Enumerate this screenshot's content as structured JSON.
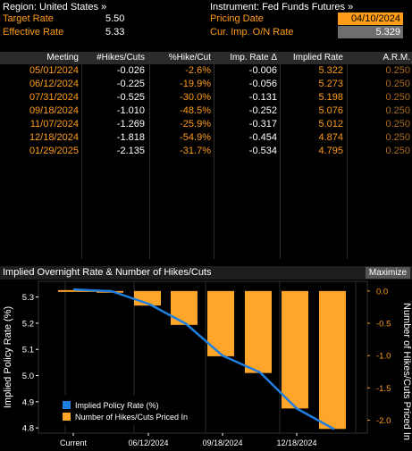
{
  "header": {
    "region_label": "Region: United States »",
    "instrument_label": "Instrument: Fed Funds Futures »",
    "target_rate_label": "Target Rate",
    "target_rate_value": "5.50",
    "effective_rate_label": "Effective Rate",
    "effective_rate_value": "5.33",
    "pricing_date_label": "Pricing Date",
    "pricing_date_value": "04/10/2024",
    "cur_imp_label": "Cur. Imp. O/N Rate",
    "cur_imp_value": "5.329"
  },
  "table": {
    "columns": [
      "Meeting",
      "#Hikes/Cuts",
      "%Hike/Cut",
      "Imp. Rate Δ",
      "Implied Rate",
      "A.R.M."
    ],
    "rows": [
      [
        "05/01/2024",
        "-0.026",
        "-2.6%",
        "-0.006",
        "5.322",
        "0.250"
      ],
      [
        "06/12/2024",
        "-0.225",
        "-19.9%",
        "-0.056",
        "5.273",
        "0.250"
      ],
      [
        "07/31/2024",
        "-0.525",
        "-30.0%",
        "-0.131",
        "5.198",
        "0.250"
      ],
      [
        "09/18/2024",
        "-1.010",
        "-48.5%",
        "-0.252",
        "5.076",
        "0.250"
      ],
      [
        "11/07/2024",
        "-1.269",
        "-25.9%",
        "-0.317",
        "5.012",
        "0.250"
      ],
      [
        "12/18/2024",
        "-1.818",
        "-54.9%",
        "-0.454",
        "4.874",
        "0.250"
      ],
      [
        "01/29/2025",
        "-2.135",
        "-31.7%",
        "-0.534",
        "4.795",
        "0.250"
      ]
    ]
  },
  "chart": {
    "title": "Implied Overnight Rate & Number of Hikes/Cuts",
    "maximize_label": "Maximize",
    "colors": {
      "bar": "#ffa52a",
      "line": "#1f7fe0",
      "axis": "#ff9c1a"
    }
  },
  "chart_data": {
    "type": "bar",
    "left_axis": {
      "label": "Implied Policy Rate (%)",
      "ticks": [
        "5.3",
        "5.2",
        "5.1",
        "5.0",
        "4.9",
        "4.8"
      ],
      "range": [
        4.78,
        5.36
      ]
    },
    "right_axis": {
      "label": "Number of Hikes/Cuts Priced In",
      "ticks": [
        "0.0",
        "-0.5",
        "-1.0",
        "-1.5",
        "-2.0"
      ],
      "range": [
        -2.2,
        0.15
      ]
    },
    "x_ticks": [
      "Current",
      "06/12/2024",
      "09/18/2024",
      "12/18/2024"
    ],
    "bar_series": {
      "name": "Number of Hikes/Cuts Priced In",
      "values": [
        -0.026,
        -0.225,
        -0.525,
        -1.01,
        -1.269,
        -1.818,
        -2.135
      ]
    },
    "line_series": {
      "name": "Implied Policy Rate (%)",
      "values": [
        5.329,
        5.322,
        5.273,
        5.198,
        5.076,
        5.012,
        4.874,
        4.795
      ]
    },
    "legend_position": "bottom-left"
  }
}
